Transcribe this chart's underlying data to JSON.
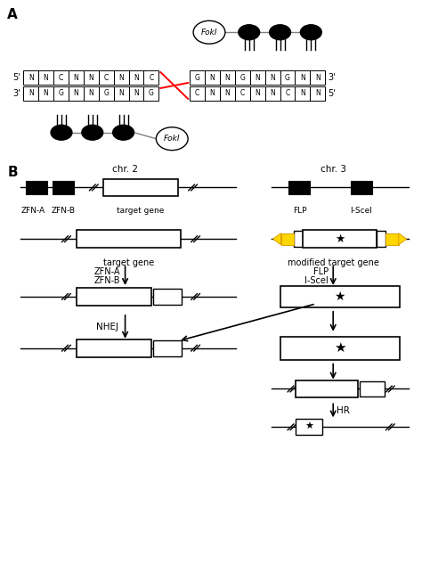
{
  "bg_color": "#ffffff",
  "label_A": "A",
  "label_B": "B",
  "top_seq_upper": [
    "N",
    "N",
    "C",
    "N",
    "N",
    "C",
    "N",
    "N",
    "C"
  ],
  "top_seq_lower_left": [
    "N",
    "N",
    "G",
    "N",
    "N",
    "G",
    "N",
    "N",
    "G"
  ],
  "top_seq_upper_right": [
    "G",
    "N",
    "N",
    "G",
    "N",
    "N",
    "G",
    "N",
    "N"
  ],
  "top_seq_lower_right": [
    "C",
    "N",
    "N",
    "C",
    "N",
    "N",
    "C",
    "N",
    "N"
  ],
  "chr2_label": "chr. 2",
  "chr3_label": "chr. 3",
  "fokI_label": "FokI",
  "zfnA_label": "ZFN-A",
  "zfnB_label": "ZFN-B",
  "target_gene_label": "target gene",
  "flp_label": "FLP",
  "isceI_label": "I-SceI",
  "modified_label": "modified target gene",
  "nhej_label": "NHEJ",
  "hr_label": "HR",
  "zfnA_arrow": "ZFN-A",
  "zfnB_arrow": "ZFN-B",
  "flp_arrow": "FLP",
  "isceI_arrow": "I-SceI",
  "prime5_top": "5'",
  "prime3_top": "3'",
  "prime3_bot": "3'",
  "prime5_bot": "5'"
}
